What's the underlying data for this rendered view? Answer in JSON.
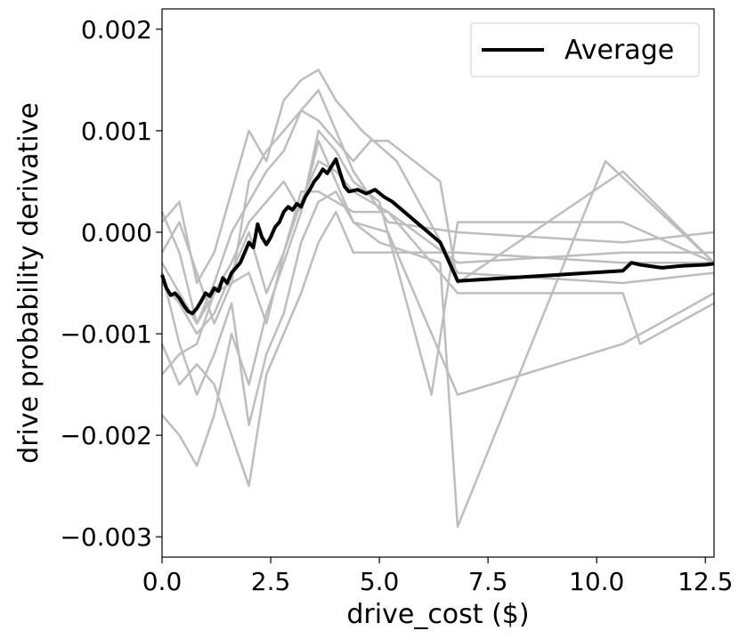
{
  "chart_data": {
    "type": "line",
    "title": "",
    "xlabel": "drive_cost ($)",
    "ylabel": "drive probability derivative",
    "xlim": [
      0,
      12.7
    ],
    "ylim": [
      -0.0032,
      0.0022
    ],
    "x_ticks": [
      0,
      2.5,
      5,
      7.5,
      10,
      12.5
    ],
    "x_tick_labels": [
      "0.0",
      "2.5",
      "5.0",
      "7.5",
      "10.0",
      "12.5"
    ],
    "y_ticks": [
      0.002,
      0.001,
      0,
      -0.001,
      -0.002,
      -0.003
    ],
    "y_tick_labels": [
      "0.002",
      "0.001",
      "0.000",
      "−0.001",
      "−0.002",
      "−0.003"
    ],
    "grid": false,
    "legend": {
      "position": "top-right",
      "entries": [
        "Average"
      ]
    },
    "colors": {
      "individual": "#bdbdbd",
      "average": "#000000"
    },
    "series": [
      {
        "x": [
          0,
          0.4,
          0.8,
          1.2,
          1.6,
          2.0,
          2.4,
          2.8,
          3.2,
          3.6,
          4.0,
          4.4,
          4.8,
          5.2,
          6.4,
          6.8,
          10.6,
          12.7
        ],
        "y": [
          -0.0003,
          -0.0006,
          -0.0009,
          -0.0005,
          0.0,
          0.0003,
          0.0006,
          0.0008,
          0.0012,
          0.0011,
          0.0009,
          0.0007,
          0.0009,
          0.0009,
          0.0005,
          -0.0005,
          0.0006,
          -0.0003
        ]
      },
      {
        "x": [
          0,
          0.4,
          0.8,
          1.2,
          1.6,
          2.0,
          2.4,
          2.8,
          3.2,
          3.6,
          4.0,
          4.4,
          5.0,
          6.2,
          6.8,
          10.6,
          12.7
        ],
        "y": [
          -0.0018,
          -0.002,
          -0.0023,
          -0.0018,
          -0.001,
          -0.0015,
          -0.0008,
          -0.0003,
          0.0002,
          0.001,
          0.0008,
          0.0005,
          0.0003,
          -0.0016,
          0.0001,
          0.0001,
          -0.0003
        ]
      },
      {
        "x": [
          0,
          0.4,
          0.8,
          1.2,
          1.6,
          2.0,
          2.4,
          2.8,
          3.2,
          3.6,
          4.0,
          4.4,
          5.2,
          6.8,
          10.6,
          12.7
        ],
        "y": [
          0.0002,
          -0.0002,
          -0.0009,
          -0.0006,
          -0.0003,
          0.0001,
          0.0003,
          0.0005,
          0.0002,
          0.0009,
          0.0005,
          0.0001,
          0.0,
          -0.0016,
          -0.0011,
          -0.0006
        ]
      },
      {
        "x": [
          0,
          0.4,
          0.8,
          1.2,
          1.6,
          2.0,
          2.4,
          2.8,
          3.2,
          3.6,
          4.0,
          4.4,
          5.0,
          6.4,
          6.8,
          10.2,
          12.7
        ],
        "y": [
          -0.0004,
          -0.0011,
          -0.0016,
          -0.0012,
          -0.0007,
          -0.0019,
          -0.0012,
          -0.0008,
          -0.0001,
          0.0003,
          0.0004,
          0.0001,
          -0.0001,
          -0.0003,
          -0.0029,
          0.0007,
          -0.0003
        ]
      },
      {
        "x": [
          0,
          0.4,
          0.8,
          1.2,
          1.6,
          2.0,
          2.4,
          2.8,
          3.2,
          3.6,
          4.0,
          4.6,
          5.4,
          6.8,
          10.6,
          12.7
        ],
        "y": [
          0.0001,
          0.0003,
          -0.0005,
          -0.0002,
          0.0004,
          0.001,
          0.0007,
          0.0013,
          0.0015,
          0.0016,
          0.0013,
          0.001,
          0.0007,
          -0.0004,
          -0.0005,
          -0.0004
        ]
      },
      {
        "x": [
          0,
          0.4,
          0.8,
          1.2,
          1.6,
          2.0,
          2.4,
          2.8,
          3.2,
          3.6,
          4.0,
          4.4,
          5.0,
          6.8,
          10.6,
          12.7
        ],
        "y": [
          -0.0011,
          -0.0015,
          -0.0013,
          -0.0015,
          -0.002,
          -0.0025,
          -0.0014,
          -0.001,
          -0.0006,
          -0.0001,
          0.0002,
          -0.0002,
          -0.0002,
          -0.0002,
          -0.0003,
          -0.0003
        ]
      },
      {
        "x": [
          0,
          0.4,
          0.8,
          1.2,
          1.6,
          2.0,
          2.4,
          2.8,
          3.2,
          3.6,
          4.0,
          4.4,
          5.2,
          6.8,
          10.6,
          12.7
        ],
        "y": [
          -0.0005,
          -0.0007,
          -0.001,
          -0.0008,
          -0.0004,
          0.0,
          -0.0006,
          -0.0002,
          0.0004,
          0.0004,
          0.0003,
          0.0002,
          0.0002,
          -0.0003,
          -0.0002,
          -0.0002
        ]
      },
      {
        "x": [
          0,
          0.4,
          0.8,
          1.2,
          1.6,
          2.0,
          2.4,
          2.8,
          3.2,
          3.6,
          4.0,
          4.4,
          5.2,
          6.8,
          10.6,
          12.7
        ],
        "y": [
          -0.0002,
          0.0001,
          -0.0004,
          -0.0009,
          -0.0005,
          0.0005,
          0.0008,
          0.001,
          0.0012,
          0.0014,
          0.001,
          0.0006,
          0.0001,
          0.0,
          -0.0001,
          0.0
        ]
      },
      {
        "x": [
          0,
          0.4,
          0.8,
          1.2,
          1.6,
          2.0,
          2.4,
          2.8,
          3.2,
          3.6,
          4.0,
          4.4,
          5.2,
          6.8,
          10.6,
          11.0,
          12.7
        ],
        "y": [
          -0.0014,
          -0.0012,
          -0.0011,
          -0.0006,
          -0.0005,
          -0.0004,
          -0.0009,
          -0.0002,
          0.0003,
          0.0007,
          0.0006,
          0.0004,
          0.0002,
          -0.0006,
          -0.0006,
          -0.0011,
          -0.0007
        ]
      },
      {
        "name": "Average",
        "x": [
          0.0,
          0.1,
          0.2,
          0.3,
          0.4,
          0.5,
          0.6,
          0.7,
          0.8,
          0.9,
          1.0,
          1.1,
          1.2,
          1.3,
          1.4,
          1.5,
          1.6,
          1.7,
          1.8,
          1.9,
          2.0,
          2.1,
          2.2,
          2.3,
          2.4,
          2.5,
          2.6,
          2.7,
          2.8,
          2.9,
          3.0,
          3.1,
          3.2,
          3.3,
          3.4,
          3.5,
          3.6,
          3.7,
          3.8,
          3.9,
          4.0,
          4.1,
          4.2,
          4.3,
          4.5,
          4.7,
          4.9,
          5.1,
          5.3,
          6.4,
          6.8,
          10.6,
          10.8,
          11.0,
          11.5,
          12.0,
          12.5,
          12.7
        ],
        "y": [
          -0.00042,
          -0.00055,
          -0.00062,
          -0.0006,
          -0.00065,
          -0.00072,
          -0.00078,
          -0.0008,
          -0.00075,
          -0.00068,
          -0.0006,
          -0.00063,
          -0.00055,
          -0.00058,
          -0.00045,
          -0.0005,
          -0.0004,
          -0.00035,
          -0.0003,
          -0.0002,
          -0.0001,
          -0.00015,
          8e-05,
          -5e-05,
          -0.00012,
          -5e-05,
          5e-05,
          0.0001,
          0.0002,
          0.00025,
          0.00022,
          0.00028,
          0.00025,
          0.00035,
          0.00042,
          0.0005,
          0.00055,
          0.00062,
          0.00058,
          0.00065,
          0.00072,
          0.00058,
          0.00045,
          0.0004,
          0.00042,
          0.00038,
          0.00042,
          0.00035,
          0.0003,
          -0.0001,
          -0.00048,
          -0.00038,
          -0.0003,
          -0.00032,
          -0.00035,
          -0.00033,
          -0.00032,
          -0.00031
        ]
      }
    ]
  }
}
